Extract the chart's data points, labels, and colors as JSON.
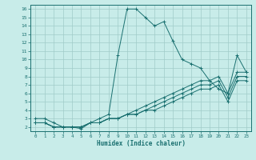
{
  "xlabel": "Humidex (Indice chaleur)",
  "background_color": "#c8ece9",
  "grid_color": "#a0ccc8",
  "line_color": "#1a7070",
  "xlim": [
    -0.5,
    23.5
  ],
  "ylim": [
    1.5,
    16.5
  ],
  "xticks": [
    0,
    1,
    2,
    3,
    4,
    5,
    6,
    7,
    8,
    9,
    10,
    11,
    12,
    13,
    14,
    15,
    16,
    17,
    18,
    19,
    20,
    21,
    22,
    23
  ],
  "yticks": [
    2,
    3,
    4,
    5,
    6,
    7,
    8,
    9,
    10,
    11,
    12,
    13,
    14,
    15,
    16
  ],
  "lines": [
    {
      "x": [
        0,
        1,
        2,
        3,
        4,
        5,
        6,
        7,
        8,
        9,
        10,
        11,
        12,
        13,
        14,
        15,
        16,
        17,
        18,
        19,
        20,
        21,
        22,
        23
      ],
      "y": [
        3,
        3,
        2.5,
        2,
        2,
        1.8,
        2.5,
        3,
        3.5,
        10.5,
        16,
        16,
        15,
        14,
        14.5,
        12.2,
        10,
        9.5,
        9,
        7.5,
        6.5,
        6,
        10.5,
        8.5
      ]
    },
    {
      "x": [
        0,
        1,
        2,
        3,
        4,
        5,
        6,
        7,
        8,
        9,
        10,
        11,
        12,
        13,
        14,
        15,
        16,
        17,
        18,
        19,
        20,
        21,
        22,
        23
      ],
      "y": [
        2.5,
        2.5,
        2,
        2,
        2,
        2,
        2.5,
        2.5,
        3,
        3,
        3.5,
        4,
        4.5,
        5,
        5.5,
        6,
        6.5,
        7,
        7.5,
        7.5,
        8,
        6,
        8.5,
        8.5
      ]
    },
    {
      "x": [
        0,
        1,
        2,
        3,
        4,
        5,
        6,
        7,
        8,
        9,
        10,
        11,
        12,
        13,
        14,
        15,
        16,
        17,
        18,
        19,
        20,
        21,
        22,
        23
      ],
      "y": [
        2.5,
        2.5,
        2,
        2,
        2,
        2,
        2.5,
        2.5,
        3,
        3,
        3.5,
        3.5,
        4,
        4.5,
        5,
        5.5,
        6,
        6.5,
        7,
        7,
        7.5,
        5.5,
        8,
        8
      ]
    },
    {
      "x": [
        0,
        1,
        2,
        3,
        4,
        5,
        6,
        7,
        8,
        9,
        10,
        11,
        12,
        13,
        14,
        15,
        16,
        17,
        18,
        19,
        20,
        21,
        22,
        23
      ],
      "y": [
        2.5,
        2.5,
        2,
        2,
        2,
        2,
        2.5,
        2.5,
        3,
        3,
        3.5,
        3.5,
        4,
        4,
        4.5,
        5,
        5.5,
        6,
        6.5,
        6.5,
        7,
        5,
        7.5,
        7.5
      ]
    }
  ]
}
